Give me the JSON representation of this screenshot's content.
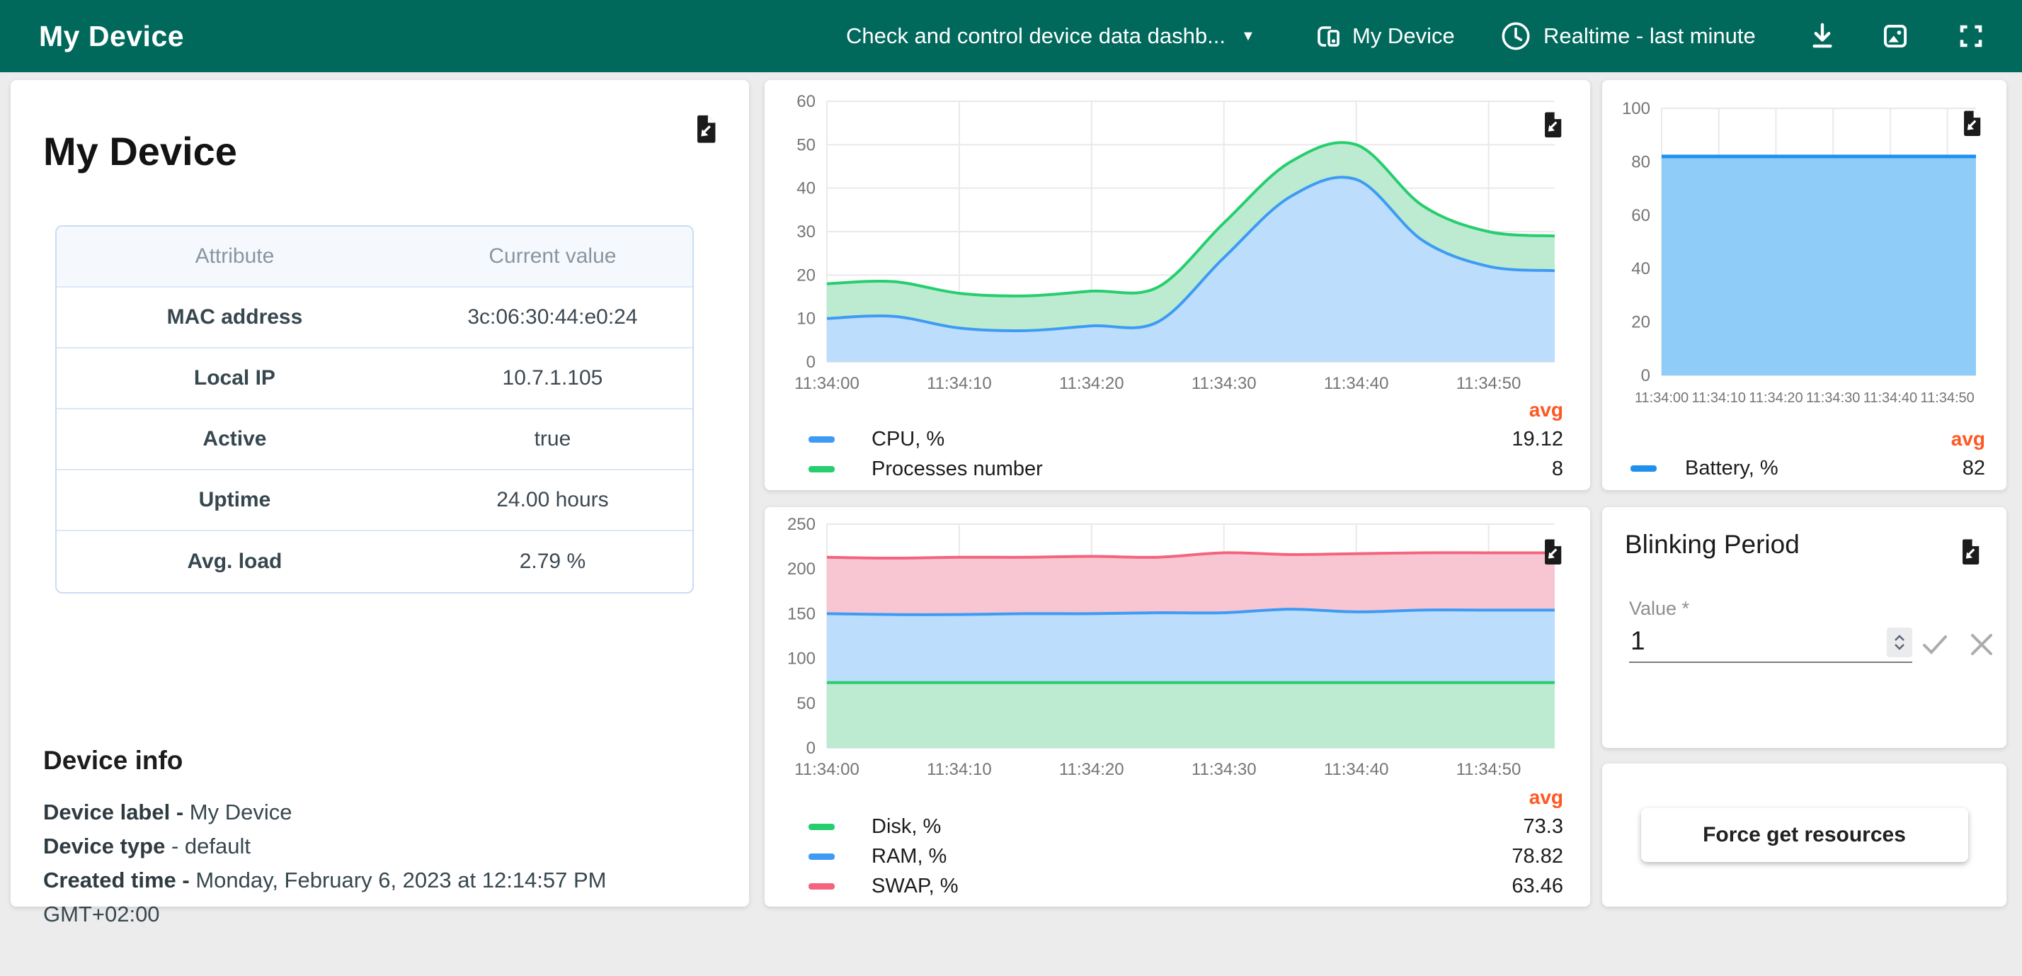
{
  "topbar": {
    "title": "My Device",
    "dashboard_select": "Check and control device data dashb...",
    "caret": "▼",
    "entity_label": "My Device",
    "time_window": "Realtime - last minute",
    "bg_color": "#01695C"
  },
  "device_card": {
    "title": "My Device",
    "table": {
      "headers": [
        "Attribute",
        "Current value"
      ],
      "rows": [
        {
          "attribute": "MAC address",
          "value": "3c:06:30:44:e0:24"
        },
        {
          "attribute": "Local IP",
          "value": "10.7.1.105"
        },
        {
          "attribute": "Active",
          "value": "true"
        },
        {
          "attribute": "Uptime",
          "value": "24.00 hours"
        },
        {
          "attribute": "Avg. load",
          "value": "2.79 %"
        }
      ]
    },
    "info": {
      "heading": "Device info",
      "lines": [
        {
          "label": "Device label - ",
          "value": "My Device"
        },
        {
          "label": "Device type",
          "value": "- default"
        },
        {
          "label": "Created time - ",
          "value": "Monday, February 6, 2023 at 12:14:57 PM GMT+02:00"
        }
      ]
    }
  },
  "blinking_card": {
    "title": "Blinking Period",
    "field_label": "Value *",
    "value": "1"
  },
  "force_card": {
    "button_label": "Force get resources"
  },
  "colors": {
    "avg_header": "#FF5722",
    "grid": "#E9E9E9",
    "axis_text": "#757575"
  },
  "chart_data": [
    {
      "type": "area",
      "stacked": true,
      "tmax": 55,
      "step": 5,
      "xtick_seconds": [
        0,
        10,
        20,
        30,
        40,
        50
      ],
      "xtick_labels": [
        "11:34:00",
        "11:34:10",
        "11:34:20",
        "11:34:30",
        "11:34:40",
        "11:34:50"
      ],
      "ylim": [
        0,
        60
      ],
      "yticks": [
        0,
        10,
        20,
        30,
        40,
        50,
        60
      ],
      "avg_label": "avg",
      "series": [
        {
          "name": "CPU, %",
          "avg": "19.12",
          "color": "#3E9BF4",
          "fill": "#BCDDFB",
          "values": [
            10,
            10.5,
            7.8,
            7.2,
            8.3,
            9.2,
            24,
            38,
            42,
            28,
            22,
            21
          ]
        },
        {
          "name": "Processes number",
          "avg": "8",
          "color": "#26CE6E",
          "fill": "#BDEBD1",
          "values": [
            8,
            8,
            8,
            8,
            8,
            8,
            8,
            8,
            8,
            8,
            8,
            8
          ]
        }
      ]
    },
    {
      "type": "area",
      "stacked": true,
      "tmax": 55,
      "step": 5,
      "xtick_seconds": [
        0,
        10,
        20,
        30,
        40,
        50
      ],
      "xtick_labels": [
        "11:34:00",
        "11:34:10",
        "11:34:20",
        "11:34:30",
        "11:34:40",
        "11:34:50"
      ],
      "ylim": [
        0,
        250
      ],
      "yticks": [
        0,
        50,
        100,
        150,
        200,
        250
      ],
      "avg_label": "avg",
      "series": [
        {
          "name": "Disk, %",
          "avg": "73.3",
          "color": "#26CE6E",
          "fill": "#BDEBD1",
          "values": [
            73,
            73,
            73,
            73,
            73,
            73,
            73,
            73,
            73,
            73,
            73,
            73
          ]
        },
        {
          "name": "RAM, %",
          "avg": "78.82",
          "color": "#3E9BF4",
          "fill": "#BCDDFB",
          "values": [
            77,
            76,
            76,
            77,
            77,
            78,
            78,
            82,
            79,
            81,
            81,
            81
          ]
        },
        {
          "name": "SWAP, %",
          "avg": "63.46",
          "color": "#F4647E",
          "fill": "#F8C6D2",
          "values": [
            63,
            63,
            64,
            63,
            64,
            62,
            67,
            61,
            65,
            64,
            64,
            64
          ]
        }
      ]
    },
    {
      "type": "area",
      "stacked": true,
      "tmax": 55,
      "step": 5,
      "xtick_seconds": [
        0,
        10,
        20,
        30,
        40,
        50
      ],
      "xtick_labels": [
        "11:34:00",
        "11:34:10",
        "11:34:20",
        "11:34:30",
        "11:34:40",
        "11:34:50"
      ],
      "ylim": [
        0,
        100
      ],
      "yticks": [
        0,
        20,
        40,
        60,
        80,
        100
      ],
      "avg_label": "avg",
      "series": [
        {
          "name": "Battery, %",
          "avg": "82",
          "color": "#1E90F0",
          "fill": "#8FCDF8",
          "values": [
            82,
            82,
            82,
            82,
            82,
            82,
            82,
            82,
            82,
            82,
            82,
            82
          ]
        }
      ]
    }
  ]
}
